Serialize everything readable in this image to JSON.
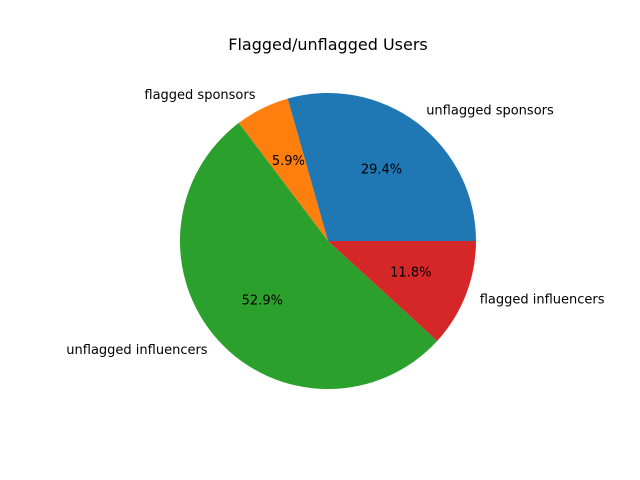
{
  "chart_data": {
    "type": "pie",
    "title": "Flagged/unflagged Users",
    "categories": [
      "unflagged sponsors",
      "flagged sponsors",
      "unflagged influencers",
      "flagged influencers"
    ],
    "values": [
      29.4,
      5.9,
      52.9,
      11.8
    ],
    "percent_labels": [
      "29.4%",
      "5.9%",
      "52.9%",
      "11.8%"
    ],
    "colors": [
      "#1f77b4",
      "#ff7f0e",
      "#2ca02c",
      "#d62728"
    ],
    "start_angle_deg": 0,
    "direction": "counterclockwise",
    "legend": "none"
  }
}
